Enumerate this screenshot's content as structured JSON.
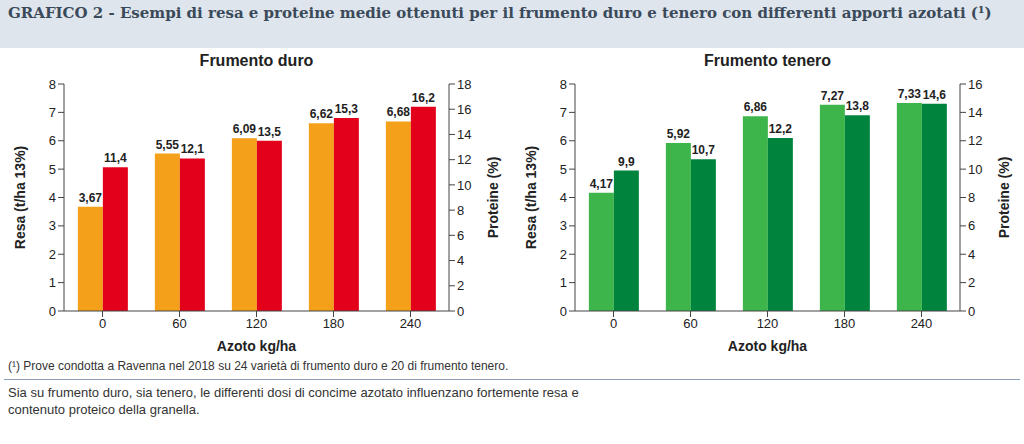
{
  "title": "GRAFICO 2 - Esempi di resa e proteine medie ottenuti per il frumento duro e tenero con differenti apporti azotati (¹)",
  "footnote": "(¹) Prove condotta a Ravenna nel 2018 su 24 varietà di frumento duro e 20 di frumento tenero.",
  "caption": "Sia su frumento duro, sia tenero, le differenti dosi di concime azotato influenzano fortemente resa e contenuto proteico della granella.",
  "chart_data": [
    {
      "type": "bar",
      "title": "Frumento duro",
      "x_label": "Azoto kg/ha",
      "y_label": "Resa (t/ha 13%)",
      "y2_label": "Proteine (%)",
      "categories": [
        0,
        60,
        120,
        180,
        240
      ],
      "ylim": [
        0,
        8
      ],
      "yticks": [
        0,
        1,
        2,
        3,
        4,
        5,
        6,
        7,
        8
      ],
      "y2lim": [
        0,
        18
      ],
      "y2ticks": [
        0,
        2,
        4,
        6,
        8,
        10,
        12,
        14,
        16,
        18
      ],
      "grid": false,
      "data_labels": true,
      "series": [
        {
          "color": "#f5a01a",
          "values": [
            3.67,
            5.55,
            6.09,
            6.62,
            6.68
          ],
          "value_labels": [
            "3,67",
            "5,55",
            "6,09",
            "6,62",
            "6,68"
          ]
        },
        {
          "color": "#e2001a",
          "axis": "y2",
          "values": [
            11.4,
            12.1,
            13.5,
            15.3,
            16.2
          ],
          "value_labels": [
            "11,4",
            "12,1",
            "13,5",
            "15,3",
            "16,2"
          ]
        }
      ]
    },
    {
      "type": "bar",
      "title": "Frumento tenero",
      "x_label": "Azoto kg/ha",
      "y_label": "Resa (t/ha 13%)",
      "y2_label": "Proteine (%)",
      "categories": [
        0,
        60,
        120,
        180,
        240
      ],
      "ylim": [
        0,
        8
      ],
      "yticks": [
        0,
        1,
        2,
        3,
        4,
        5,
        6,
        7,
        8
      ],
      "y2lim": [
        0,
        16
      ],
      "y2ticks": [
        0,
        2,
        4,
        6,
        8,
        10,
        12,
        14,
        16
      ],
      "grid": false,
      "data_labels": true,
      "series": [
        {
          "color": "#3db54a",
          "values": [
            4.17,
            5.92,
            6.86,
            7.27,
            7.33
          ],
          "value_labels": [
            "4,17",
            "5,92",
            "6,86",
            "7,27",
            "7,33"
          ]
        },
        {
          "color": "#00843d",
          "axis": "y2",
          "values": [
            9.9,
            10.7,
            12.2,
            13.8,
            14.6
          ],
          "value_labels": [
            "9,9",
            "10,7",
            "12,2",
            "13,8",
            "14,6"
          ]
        }
      ]
    }
  ]
}
